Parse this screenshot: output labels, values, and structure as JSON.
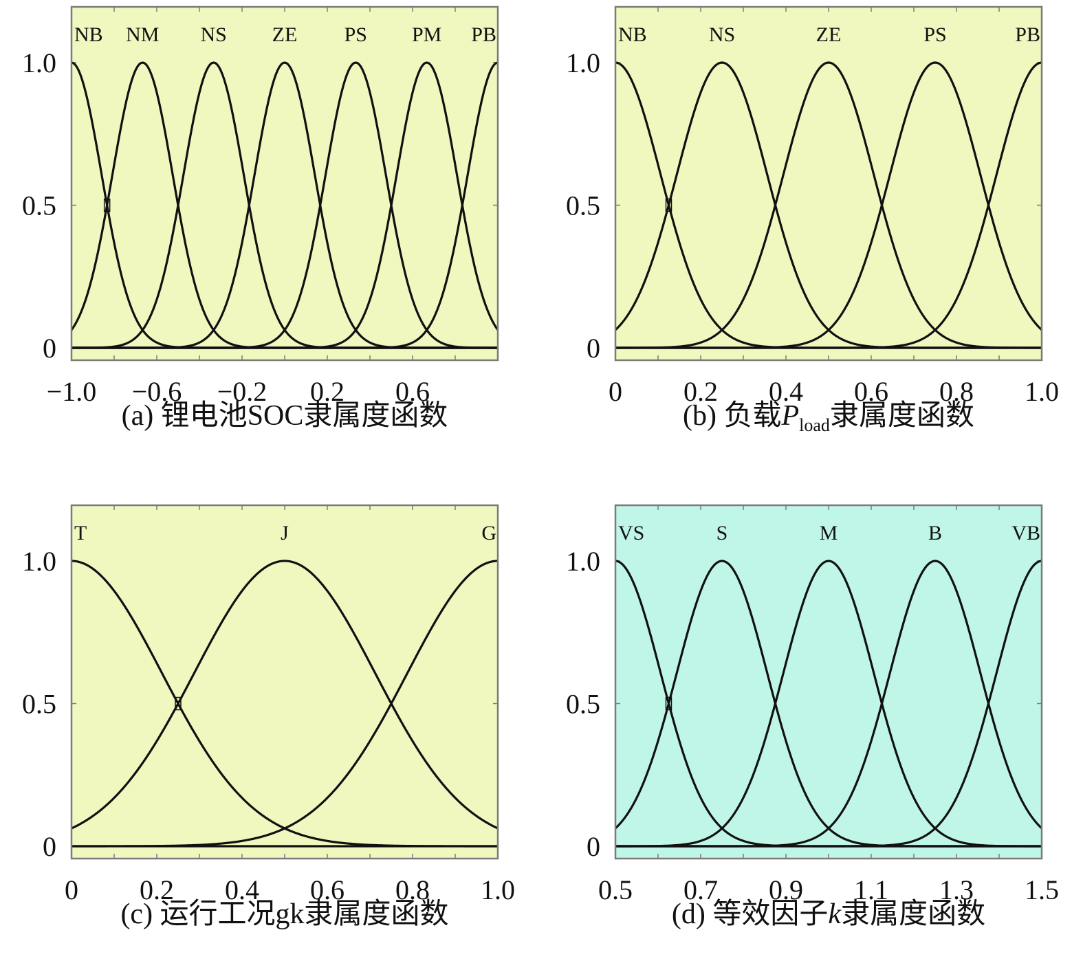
{
  "colors": {
    "plot_bg_yellow": "#f0f8bf",
    "plot_bg_cyan": "#c0f6e8",
    "frame": "#7a7a7a",
    "curve": "#111111"
  },
  "chart_data": [
    {
      "type": "line",
      "subtype": "gaussian-membership-functions",
      "caption": {
        "prefix": "(a) 锂电池SOC隶属度函数",
        "var": "",
        "sub": "",
        "suffix": ""
      },
      "bg": "plot_bg_yellow",
      "xlim": [
        -1.0,
        1.0
      ],
      "ylim": [
        0,
        1.2
      ],
      "xticks": [
        -1.0,
        -0.6,
        -0.2,
        0.2,
        0.6
      ],
      "xtick_labels": [
        "−1.0",
        "−0.6",
        "−0.2",
        "0.2",
        "0.6"
      ],
      "xtick_marks": [
        -1.0,
        -0.8,
        -0.6,
        -0.4,
        -0.2,
        0.0,
        0.2,
        0.4,
        0.6,
        0.8,
        1.0
      ],
      "yticks": [
        0,
        0.5,
        1.0
      ],
      "ytick_labels": [
        "0",
        "0.5",
        "1.0"
      ],
      "sigma": 0.1415,
      "series": [
        {
          "name": "NB",
          "center": -1.0
        },
        {
          "name": "NM",
          "center": -0.6667
        },
        {
          "name": "NS",
          "center": -0.3333
        },
        {
          "name": "ZE",
          "center": 0.0
        },
        {
          "name": "PS",
          "center": 0.3333
        },
        {
          "name": "PM",
          "center": 0.6667
        },
        {
          "name": "PB",
          "center": 1.0
        }
      ]
    },
    {
      "type": "line",
      "subtype": "gaussian-membership-functions",
      "caption": {
        "prefix": "(b) 负载",
        "var": "P",
        "sub": "load",
        "suffix": "隶属度函数"
      },
      "bg": "plot_bg_yellow",
      "xlim": [
        0,
        1.0
      ],
      "ylim": [
        0,
        1.2
      ],
      "xticks": [
        0,
        0.2,
        0.4,
        0.6,
        0.8,
        1.0
      ],
      "xtick_labels": [
        "0",
        "0.2",
        "0.4",
        "0.6",
        "0.8",
        "1.0"
      ],
      "xtick_marks": [
        0,
        0.1,
        0.2,
        0.3,
        0.4,
        0.5,
        0.6,
        0.7,
        0.8,
        0.9,
        1.0
      ],
      "yticks": [
        0,
        0.5,
        1.0
      ],
      "ytick_labels": [
        "0",
        "0.5",
        "1.0"
      ],
      "sigma": 0.1062,
      "series": [
        {
          "name": "NB",
          "center": 0.0
        },
        {
          "name": "NS",
          "center": 0.25
        },
        {
          "name": "ZE",
          "center": 0.5
        },
        {
          "name": "PS",
          "center": 0.75
        },
        {
          "name": "PB",
          "center": 1.0
        }
      ]
    },
    {
      "type": "line",
      "subtype": "gaussian-membership-functions",
      "caption": {
        "prefix": "(c) 运行工况gk隶属度函数",
        "var": "",
        "sub": "",
        "suffix": ""
      },
      "bg": "plot_bg_yellow",
      "xlim": [
        0,
        1.0
      ],
      "ylim": [
        0,
        1.2
      ],
      "xticks": [
        0,
        0.2,
        0.4,
        0.6,
        0.8,
        1.0
      ],
      "xtick_labels": [
        "0",
        "0.2",
        "0.4",
        "0.6",
        "0.8",
        "1.0"
      ],
      "xtick_marks": [
        0,
        0.1,
        0.2,
        0.3,
        0.4,
        0.5,
        0.6,
        0.7,
        0.8,
        0.9,
        1.0
      ],
      "yticks": [
        0,
        0.5,
        1.0
      ],
      "ytick_labels": [
        "0",
        "0.5",
        "1.0"
      ],
      "sigma": 0.2123,
      "series": [
        {
          "name": "T",
          "center": 0.0
        },
        {
          "name": "J",
          "center": 0.5
        },
        {
          "name": "G",
          "center": 1.0
        }
      ]
    },
    {
      "type": "line",
      "subtype": "gaussian-membership-functions",
      "caption": {
        "prefix": "(d) 等效因子",
        "var": "k",
        "sub": "",
        "suffix": "隶属度函数"
      },
      "bg": "plot_bg_cyan",
      "xlim": [
        0.5,
        1.5
      ],
      "ylim": [
        0,
        1.2
      ],
      "xticks": [
        0.5,
        0.7,
        0.9,
        1.1,
        1.3,
        1.5
      ],
      "xtick_labels": [
        "0.5",
        "0.7",
        "0.9",
        "1.1",
        "1.3",
        "1.5"
      ],
      "xtick_marks": [
        0.5,
        0.6,
        0.7,
        0.8,
        0.9,
        1.0,
        1.1,
        1.2,
        1.3,
        1.4,
        1.5
      ],
      "yticks": [
        0,
        0.5,
        1.0
      ],
      "ytick_labels": [
        "0",
        "0.5",
        "1.0"
      ],
      "sigma": 0.1062,
      "series": [
        {
          "name": "VS",
          "center": 0.5
        },
        {
          "name": "S",
          "center": 0.75
        },
        {
          "name": "M",
          "center": 1.0
        },
        {
          "name": "B",
          "center": 1.25
        },
        {
          "name": "VB",
          "center": 1.5
        }
      ]
    }
  ]
}
